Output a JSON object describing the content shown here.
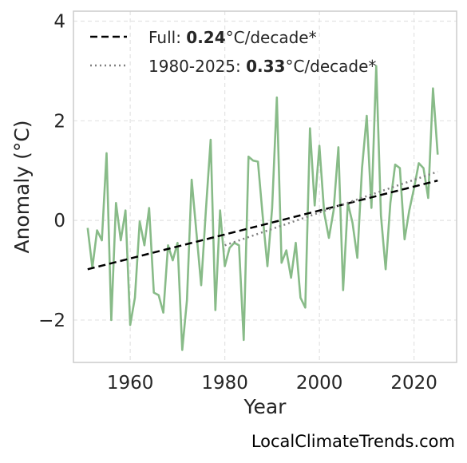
{
  "chart_data": {
    "type": "line",
    "xlabel": "Year",
    "ylabel": "Anomaly (°C)",
    "xlim": [
      1948,
      2029
    ],
    "ylim": [
      -2.85,
      4.2
    ],
    "xticks": [
      1960,
      1980,
      2000,
      2020
    ],
    "yticks": [
      -2,
      0,
      2,
      4
    ],
    "ytick_labels": [
      "−2",
      "0",
      "2",
      "4"
    ],
    "grid": true,
    "legend_position": "top-left",
    "series": [
      {
        "kind": "anomaly",
        "color": "#88bb88",
        "x": [
          1951,
          1952,
          1953,
          1954,
          1955,
          1956,
          1957,
          1958,
          1959,
          1960,
          1961,
          1962,
          1963,
          1964,
          1965,
          1966,
          1967,
          1968,
          1969,
          1970,
          1971,
          1972,
          1973,
          1974,
          1975,
          1976,
          1977,
          1978,
          1979,
          1980,
          1981,
          1982,
          1983,
          1984,
          1985,
          1986,
          1987,
          1988,
          1989,
          1990,
          1991,
          1992,
          1993,
          1994,
          1995,
          1996,
          1997,
          1998,
          1999,
          2000,
          2001,
          2002,
          2003,
          2004,
          2005,
          2006,
          2007,
          2008,
          2009,
          2010,
          2011,
          2012,
          2013,
          2014,
          2015,
          2016,
          2017,
          2018,
          2019,
          2020,
          2021,
          2022,
          2023,
          2024,
          2025
        ],
        "y": [
          -0.15,
          -0.95,
          -0.2,
          -0.4,
          1.35,
          -2.0,
          0.35,
          -0.4,
          0.2,
          -2.1,
          -1.55,
          -0.02,
          -0.5,
          0.25,
          -1.45,
          -1.5,
          -1.85,
          -0.5,
          -0.8,
          -0.45,
          -2.6,
          -1.6,
          0.82,
          -0.25,
          -1.3,
          0.2,
          1.62,
          -1.8,
          0.2,
          -0.92,
          -0.55,
          -0.45,
          -0.5,
          -2.4,
          1.28,
          1.2,
          1.18,
          0.1,
          -0.92,
          0.25,
          2.47,
          -0.85,
          -0.6,
          -1.15,
          -0.45,
          -1.55,
          -1.75,
          1.85,
          0.3,
          1.5,
          0.15,
          -0.35,
          0.2,
          1.47,
          -1.4,
          0.35,
          -0.05,
          -0.75,
          1.05,
          2.1,
          0.25,
          3.1,
          0.1,
          -0.98,
          0.35,
          1.12,
          1.05,
          -0.38,
          0.2,
          0.65,
          1.15,
          1.05,
          0.45,
          2.65,
          1.32
        ]
      },
      {
        "kind": "trend-full",
        "color": "#000000",
        "x": [
          1951,
          2025
        ],
        "y": [
          -0.98,
          0.8
        ]
      },
      {
        "kind": "trend-recent",
        "color": "#808080",
        "x": [
          1980,
          2025
        ],
        "y": [
          -0.5,
          0.98
        ]
      }
    ],
    "legend": [
      {
        "prefix": "Full: ",
        "value": "0.24",
        "suffix": "°C/decade*"
      },
      {
        "prefix": "1980-2025: ",
        "value": "0.33",
        "suffix": "°C/decade*"
      }
    ]
  },
  "watermark": "LocalClimateTrends.com"
}
